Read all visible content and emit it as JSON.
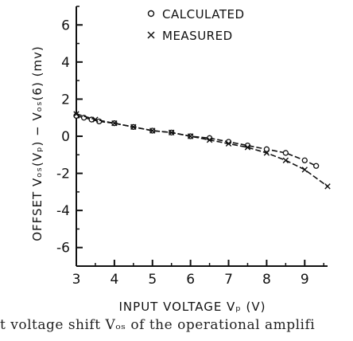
{
  "chart_data": {
    "type": "line",
    "xlabel": "INPUT VOLTAGE Vₚ (V)",
    "ylabel": "OFFSET Vₒₛ(Vₚ) − Vₒₛ(6) (mv)",
    "xlim": [
      3,
      9.6
    ],
    "ylim": [
      -7,
      7
    ],
    "xticks": [
      "3",
      "4",
      "5",
      "6",
      "7",
      "8",
      "9"
    ],
    "yticks": [
      "6",
      "4",
      "2",
      "0",
      "-2",
      "-4",
      "-6"
    ],
    "legend_position": "top-right",
    "grid": false,
    "series": [
      {
        "name": "CALCULATED",
        "marker": "circle",
        "x": [
          3.0,
          3.2,
          3.4,
          3.6,
          4.0,
          4.5,
          5.0,
          5.5,
          6.0,
          6.5,
          7.0,
          7.5,
          8.0,
          8.5,
          9.0,
          9.3
        ],
        "y": [
          1.1,
          1.0,
          0.9,
          0.8,
          0.7,
          0.5,
          0.3,
          0.2,
          0.0,
          -0.1,
          -0.3,
          -0.5,
          -0.7,
          -0.9,
          -1.3,
          -1.6
        ]
      },
      {
        "name": "MEASURED",
        "marker": "x",
        "x": [
          3.0,
          3.5,
          4.0,
          4.5,
          5.0,
          5.5,
          6.0,
          6.5,
          7.0,
          7.5,
          8.0,
          8.5,
          9.0,
          9.6
        ],
        "y": [
          1.2,
          0.9,
          0.7,
          0.5,
          0.3,
          0.2,
          0.0,
          -0.2,
          -0.4,
          -0.6,
          -0.9,
          -1.3,
          -1.8,
          -2.7
        ]
      }
    ]
  },
  "caption": "t voltage shift Vₒₛ of the operational amplifi"
}
